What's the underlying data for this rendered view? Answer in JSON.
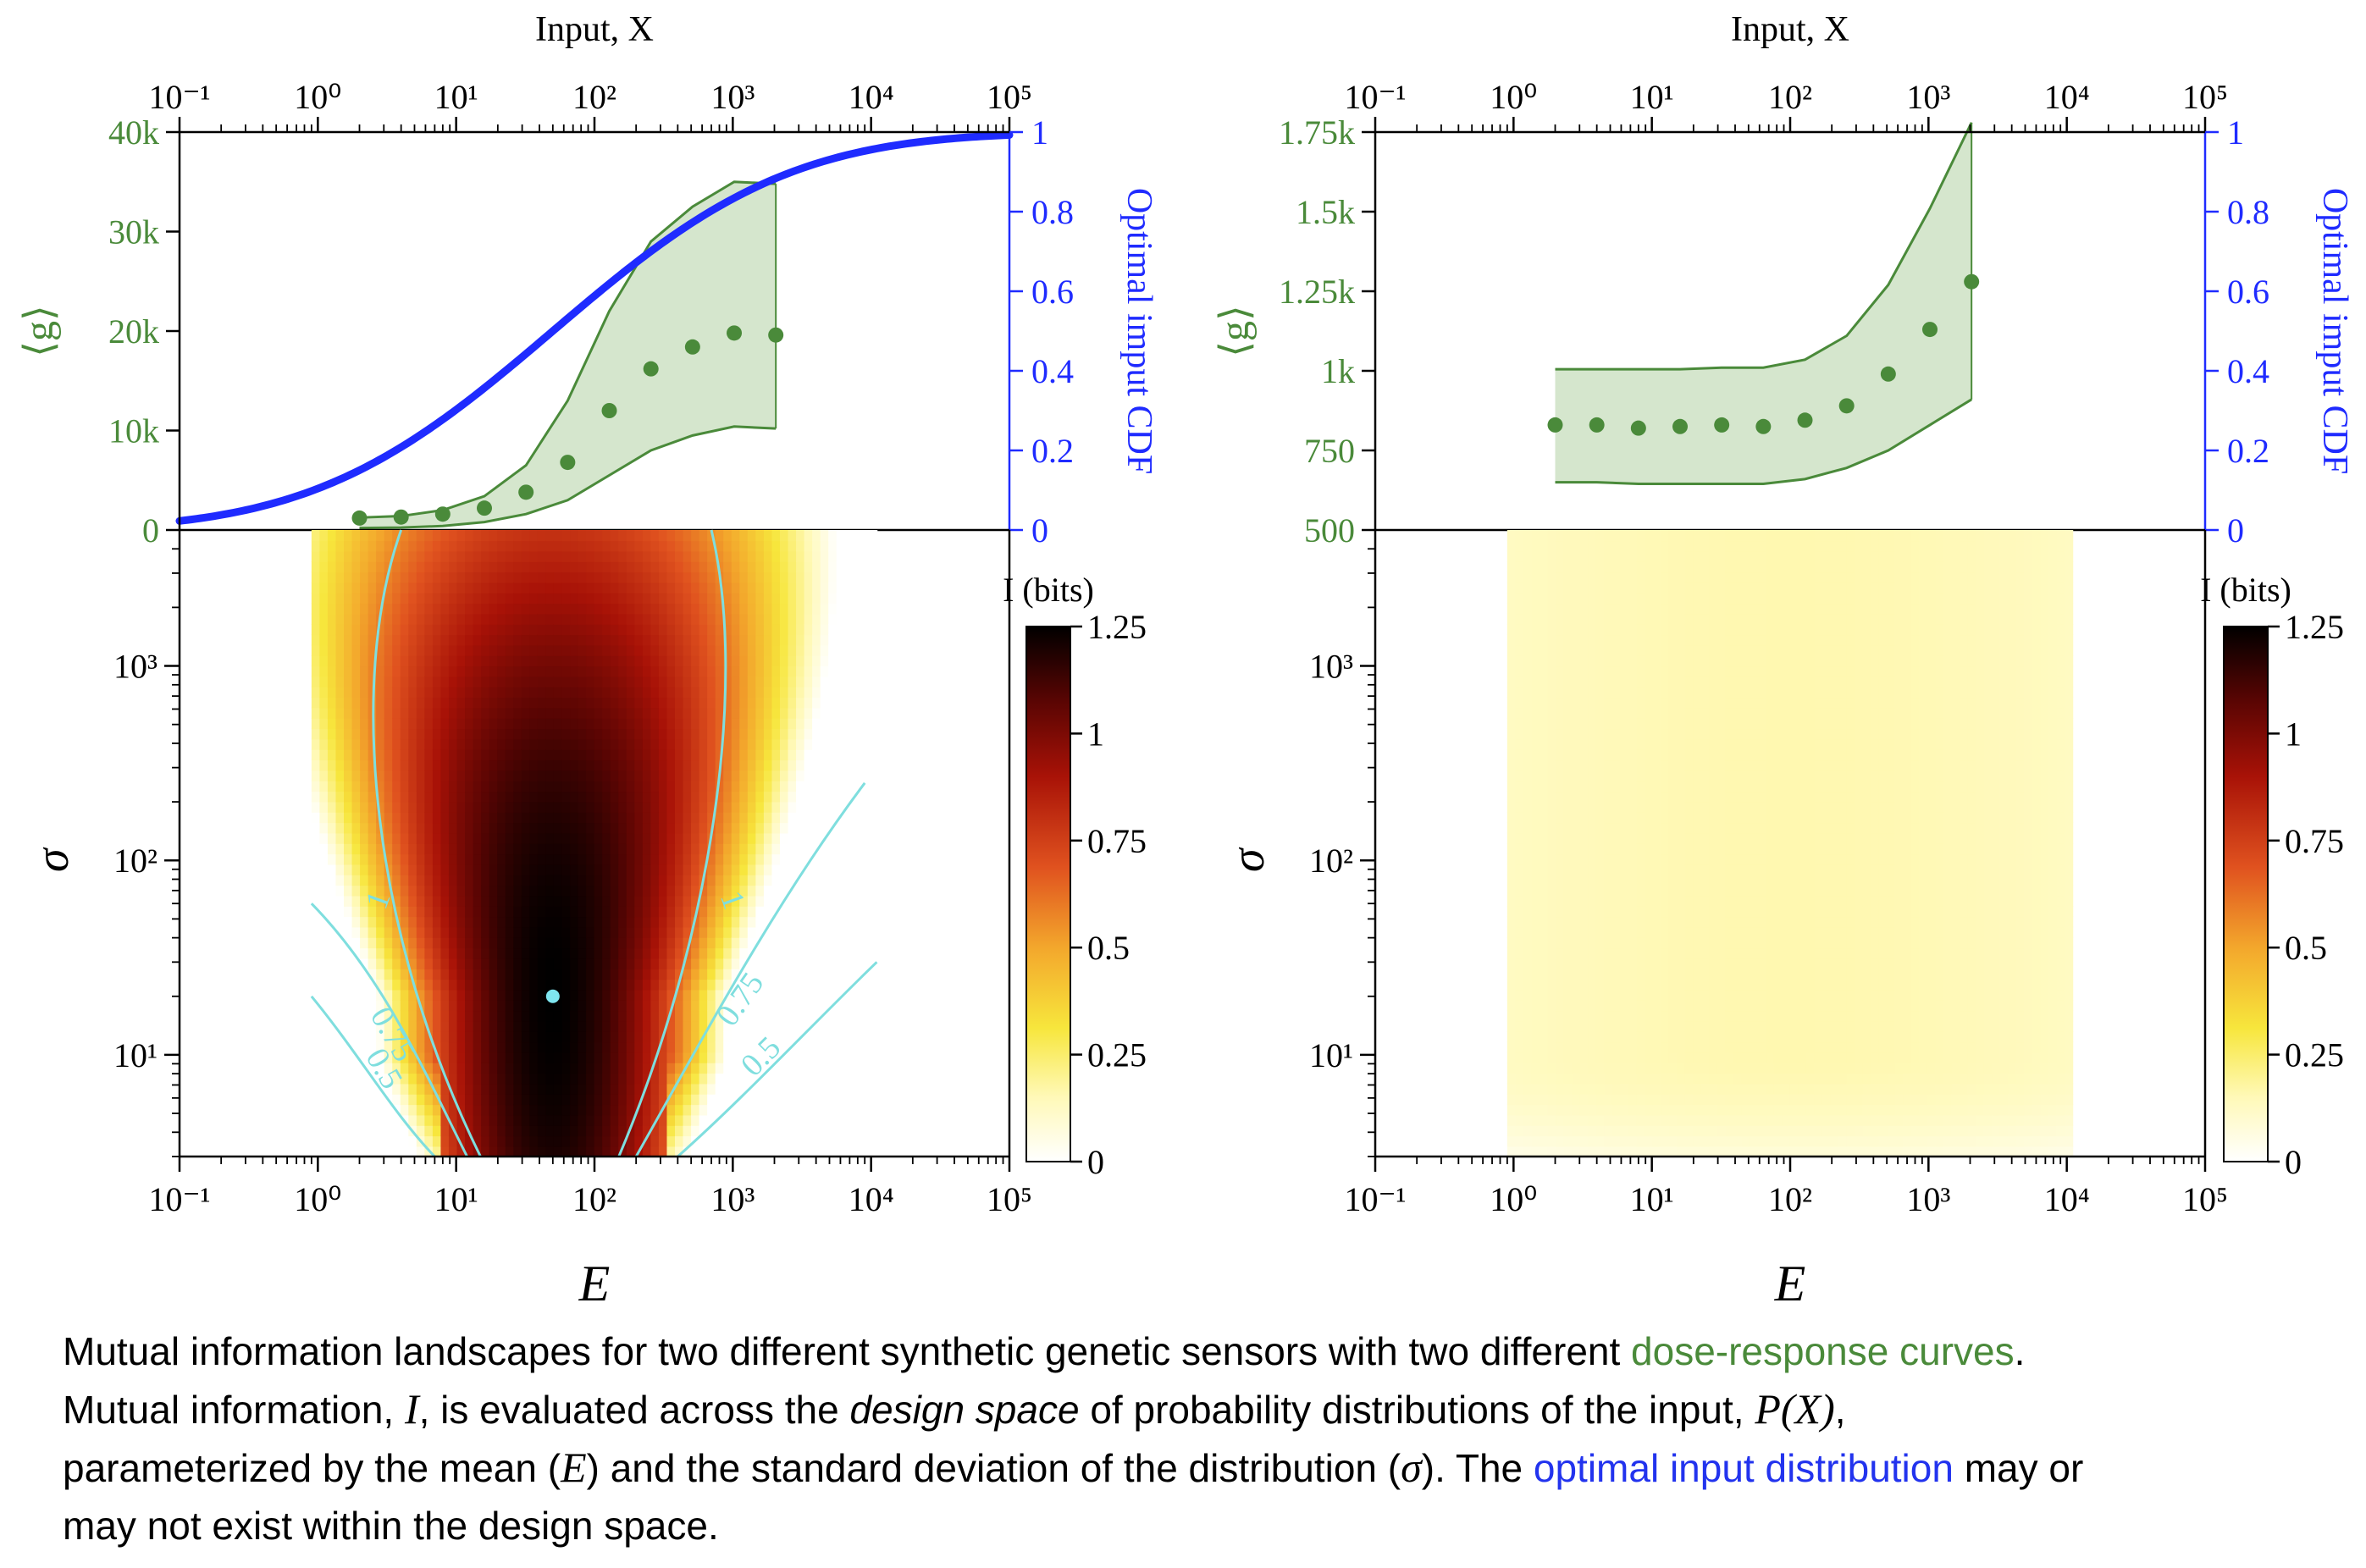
{
  "chart_data": [
    {
      "type": "scatter",
      "panel": "top-left",
      "title": "Input, X",
      "xlabel": "Input, X",
      "ylabel_left": "⟨g⟩",
      "ylabel_right": "Optimal imput CDF",
      "xscale": "log",
      "xlim": [
        0.1,
        100000
      ],
      "x_tick_labels": [
        "10⁻¹",
        "10⁰",
        "10¹",
        "10²",
        "10³",
        "10⁴",
        "10⁵"
      ],
      "ylim_left": [
        0,
        40000
      ],
      "y_left_tick_labels": [
        "0",
        "10k",
        "20k",
        "30k",
        "40k"
      ],
      "ylim_right": [
        0,
        1
      ],
      "y_right_tick_labels": [
        "0",
        "0.2",
        "0.4",
        "0.6",
        "0.8",
        "1"
      ],
      "series": [
        {
          "name": "mean ⟨g⟩",
          "color": "#4a8a3a",
          "x": [
            2,
            4,
            8,
            16,
            32,
            64,
            128,
            256,
            512,
            1024,
            2048
          ],
          "values": [
            1200,
            1300,
            1600,
            2200,
            3800,
            6800,
            12000,
            16200,
            18400,
            19800,
            19600
          ]
        },
        {
          "name": "band upper",
          "x": [
            2,
            4,
            8,
            16,
            32,
            64,
            128,
            256,
            512,
            1024,
            2048
          ],
          "values": [
            1250,
            1400,
            2000,
            3400,
            6500,
            13000,
            22000,
            29000,
            32500,
            35000,
            34800
          ]
        },
        {
          "name": "band lower",
          "x": [
            2,
            4,
            8,
            16,
            32,
            64,
            128,
            256,
            512,
            1024,
            2048
          ],
          "values": [
            200,
            250,
            400,
            800,
            1600,
            3000,
            5500,
            8000,
            9500,
            10400,
            10200
          ]
        },
        {
          "name": "Optimal input CDF",
          "color": "#1f2bff",
          "axis": "right",
          "curve": "lognormal",
          "median": 50,
          "sigma_log10": 1.35
        }
      ]
    },
    {
      "type": "heatmap",
      "panel": "bottom-left",
      "xlabel": "E",
      "ylabel": "σ",
      "xscale": "log",
      "yscale": "log",
      "xlim": [
        0.1,
        100000
      ],
      "ylim": [
        3,
        5000
      ],
      "x_tick_labels": [
        "10⁻¹",
        "10⁰",
        "10¹",
        "10²",
        "10³",
        "10⁴",
        "10⁵"
      ],
      "y_tick_labels": [
        "10¹",
        "10²",
        "10³"
      ],
      "data_extent_E": [
        0.9,
        11000
      ],
      "peak": {
        "E": 50,
        "sigma": 20,
        "I": 1.25
      },
      "contour_levels": [
        1,
        0.75,
        0.5
      ],
      "contour_labels": [
        "1",
        "1",
        "0.75",
        "0.75",
        "0.5",
        "0.5"
      ],
      "colorbar": {
        "label": "I (bits)",
        "range": [
          0,
          1.25
        ],
        "tick_labels": [
          "0",
          "0.25",
          "0.5",
          "0.75",
          "1",
          "1.25"
        ]
      }
    },
    {
      "type": "scatter",
      "panel": "top-right",
      "title": "Input, X",
      "xlabel": "Input, X",
      "ylabel_left": "⟨g⟩",
      "ylabel_right": "Optimal imput CDF",
      "xscale": "log",
      "xlim": [
        0.1,
        100000
      ],
      "x_tick_labels": [
        "10⁻¹",
        "10⁰",
        "10¹",
        "10²",
        "10³",
        "10⁴",
        "10⁵"
      ],
      "ylim_left": [
        500,
        1750
      ],
      "y_left_tick_labels": [
        "500",
        "750",
        "1k",
        "1.25k",
        "1.5k",
        "1.75k"
      ],
      "ylim_right": [
        0,
        1
      ],
      "y_right_tick_labels": [
        "0",
        "0.2",
        "0.4",
        "0.6",
        "0.8",
        "1"
      ],
      "series": [
        {
          "name": "mean ⟨g⟩",
          "color": "#4a8a3a",
          "x": [
            2,
            4,
            8,
            16,
            32,
            64,
            128,
            256,
            512,
            1024,
            2048
          ],
          "values": [
            830,
            830,
            820,
            825,
            830,
            825,
            845,
            890,
            990,
            1130,
            1280
          ]
        },
        {
          "name": "band upper",
          "x": [
            2,
            4,
            8,
            16,
            32,
            64,
            128,
            256,
            512,
            1024,
            2048
          ],
          "values": [
            1005,
            1005,
            1005,
            1005,
            1010,
            1010,
            1035,
            1110,
            1270,
            1510,
            1780
          ]
        },
        {
          "name": "band lower",
          "x": [
            2,
            4,
            8,
            16,
            32,
            64,
            128,
            256,
            512,
            1024,
            2048
          ],
          "values": [
            650,
            650,
            645,
            645,
            645,
            645,
            660,
            695,
            750,
            830,
            910
          ]
        }
      ]
    },
    {
      "type": "heatmap",
      "panel": "bottom-right",
      "xlabel": "E",
      "ylabel": "σ",
      "xscale": "log",
      "yscale": "log",
      "xlim": [
        0.1,
        100000
      ],
      "ylim": [
        3,
        5000
      ],
      "x_tick_labels": [
        "10⁻¹",
        "10⁰",
        "10¹",
        "10²",
        "10³",
        "10⁴",
        "10⁵"
      ],
      "y_tick_labels": [
        "10¹",
        "10²",
        "10³"
      ],
      "data_extent_E": [
        0.9,
        11000
      ],
      "I_range": [
        0,
        0.2
      ],
      "colorbar": {
        "label": "I (bits)",
        "range": [
          0,
          1.25
        ],
        "tick_labels": [
          "0",
          "0.25",
          "0.5",
          "0.75",
          "1",
          "1.25"
        ]
      }
    }
  ],
  "caption": {
    "l1_a": "Mutual information landscapes for two different synthetic genetic sensors with two different ",
    "l1_green": "dose-response curves",
    "l1_b": ".",
    "l2_a": "Mutual information, ",
    "l2_I": "I",
    "l2_b": ", is evaluated across the ",
    "l2_design": "design space",
    "l2_c": " of probability distributions of the input, ",
    "l2_PX": "P(X)",
    "l2_d": ",",
    "l3_a": "parameterized by the mean (",
    "l3_E": "E",
    "l3_b": ") and the standard deviation of the distribution (",
    "l3_sigma": "σ",
    "l3_c": "). The ",
    "l3_blue": "optimal input distribution",
    "l3_d": " may or",
    "l4": "may not exist within the design space."
  },
  "colors": {
    "green": "#4a8a3a",
    "green_fill": "#d5e6cd",
    "blue": "#1f2bff",
    "contour": "#7fdede",
    "peak": "#7fe6f0"
  }
}
